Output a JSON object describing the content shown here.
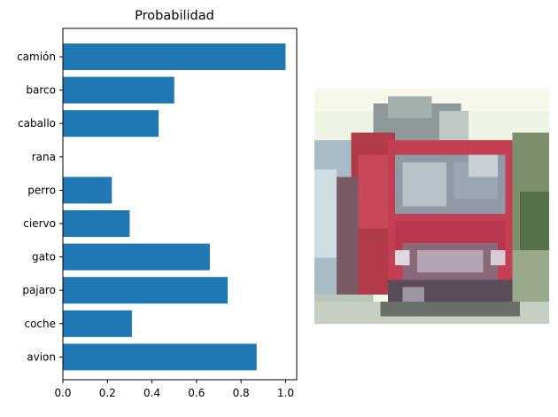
{
  "chart_data": {
    "type": "bar",
    "orientation": "horizontal",
    "title": "Probabilidad",
    "categories": [
      "camión",
      "barco",
      "caballo",
      "rana",
      "perro",
      "ciervo",
      "gato",
      "pajaro",
      "coche",
      "avion"
    ],
    "values": [
      1.0,
      0.5,
      0.43,
      0.0,
      0.22,
      0.3,
      0.66,
      0.74,
      0.31,
      0.87
    ],
    "xlim": [
      0.0,
      1.05
    ],
    "xticks": [
      "0.0",
      "0.2",
      "0.4",
      "0.6",
      "0.8",
      "1.0"
    ],
    "bar_color": "#1f77b4",
    "grid": false
  },
  "image_panel": {
    "subject": "red truck (low-resolution CIFAR-style thumbnail)"
  }
}
